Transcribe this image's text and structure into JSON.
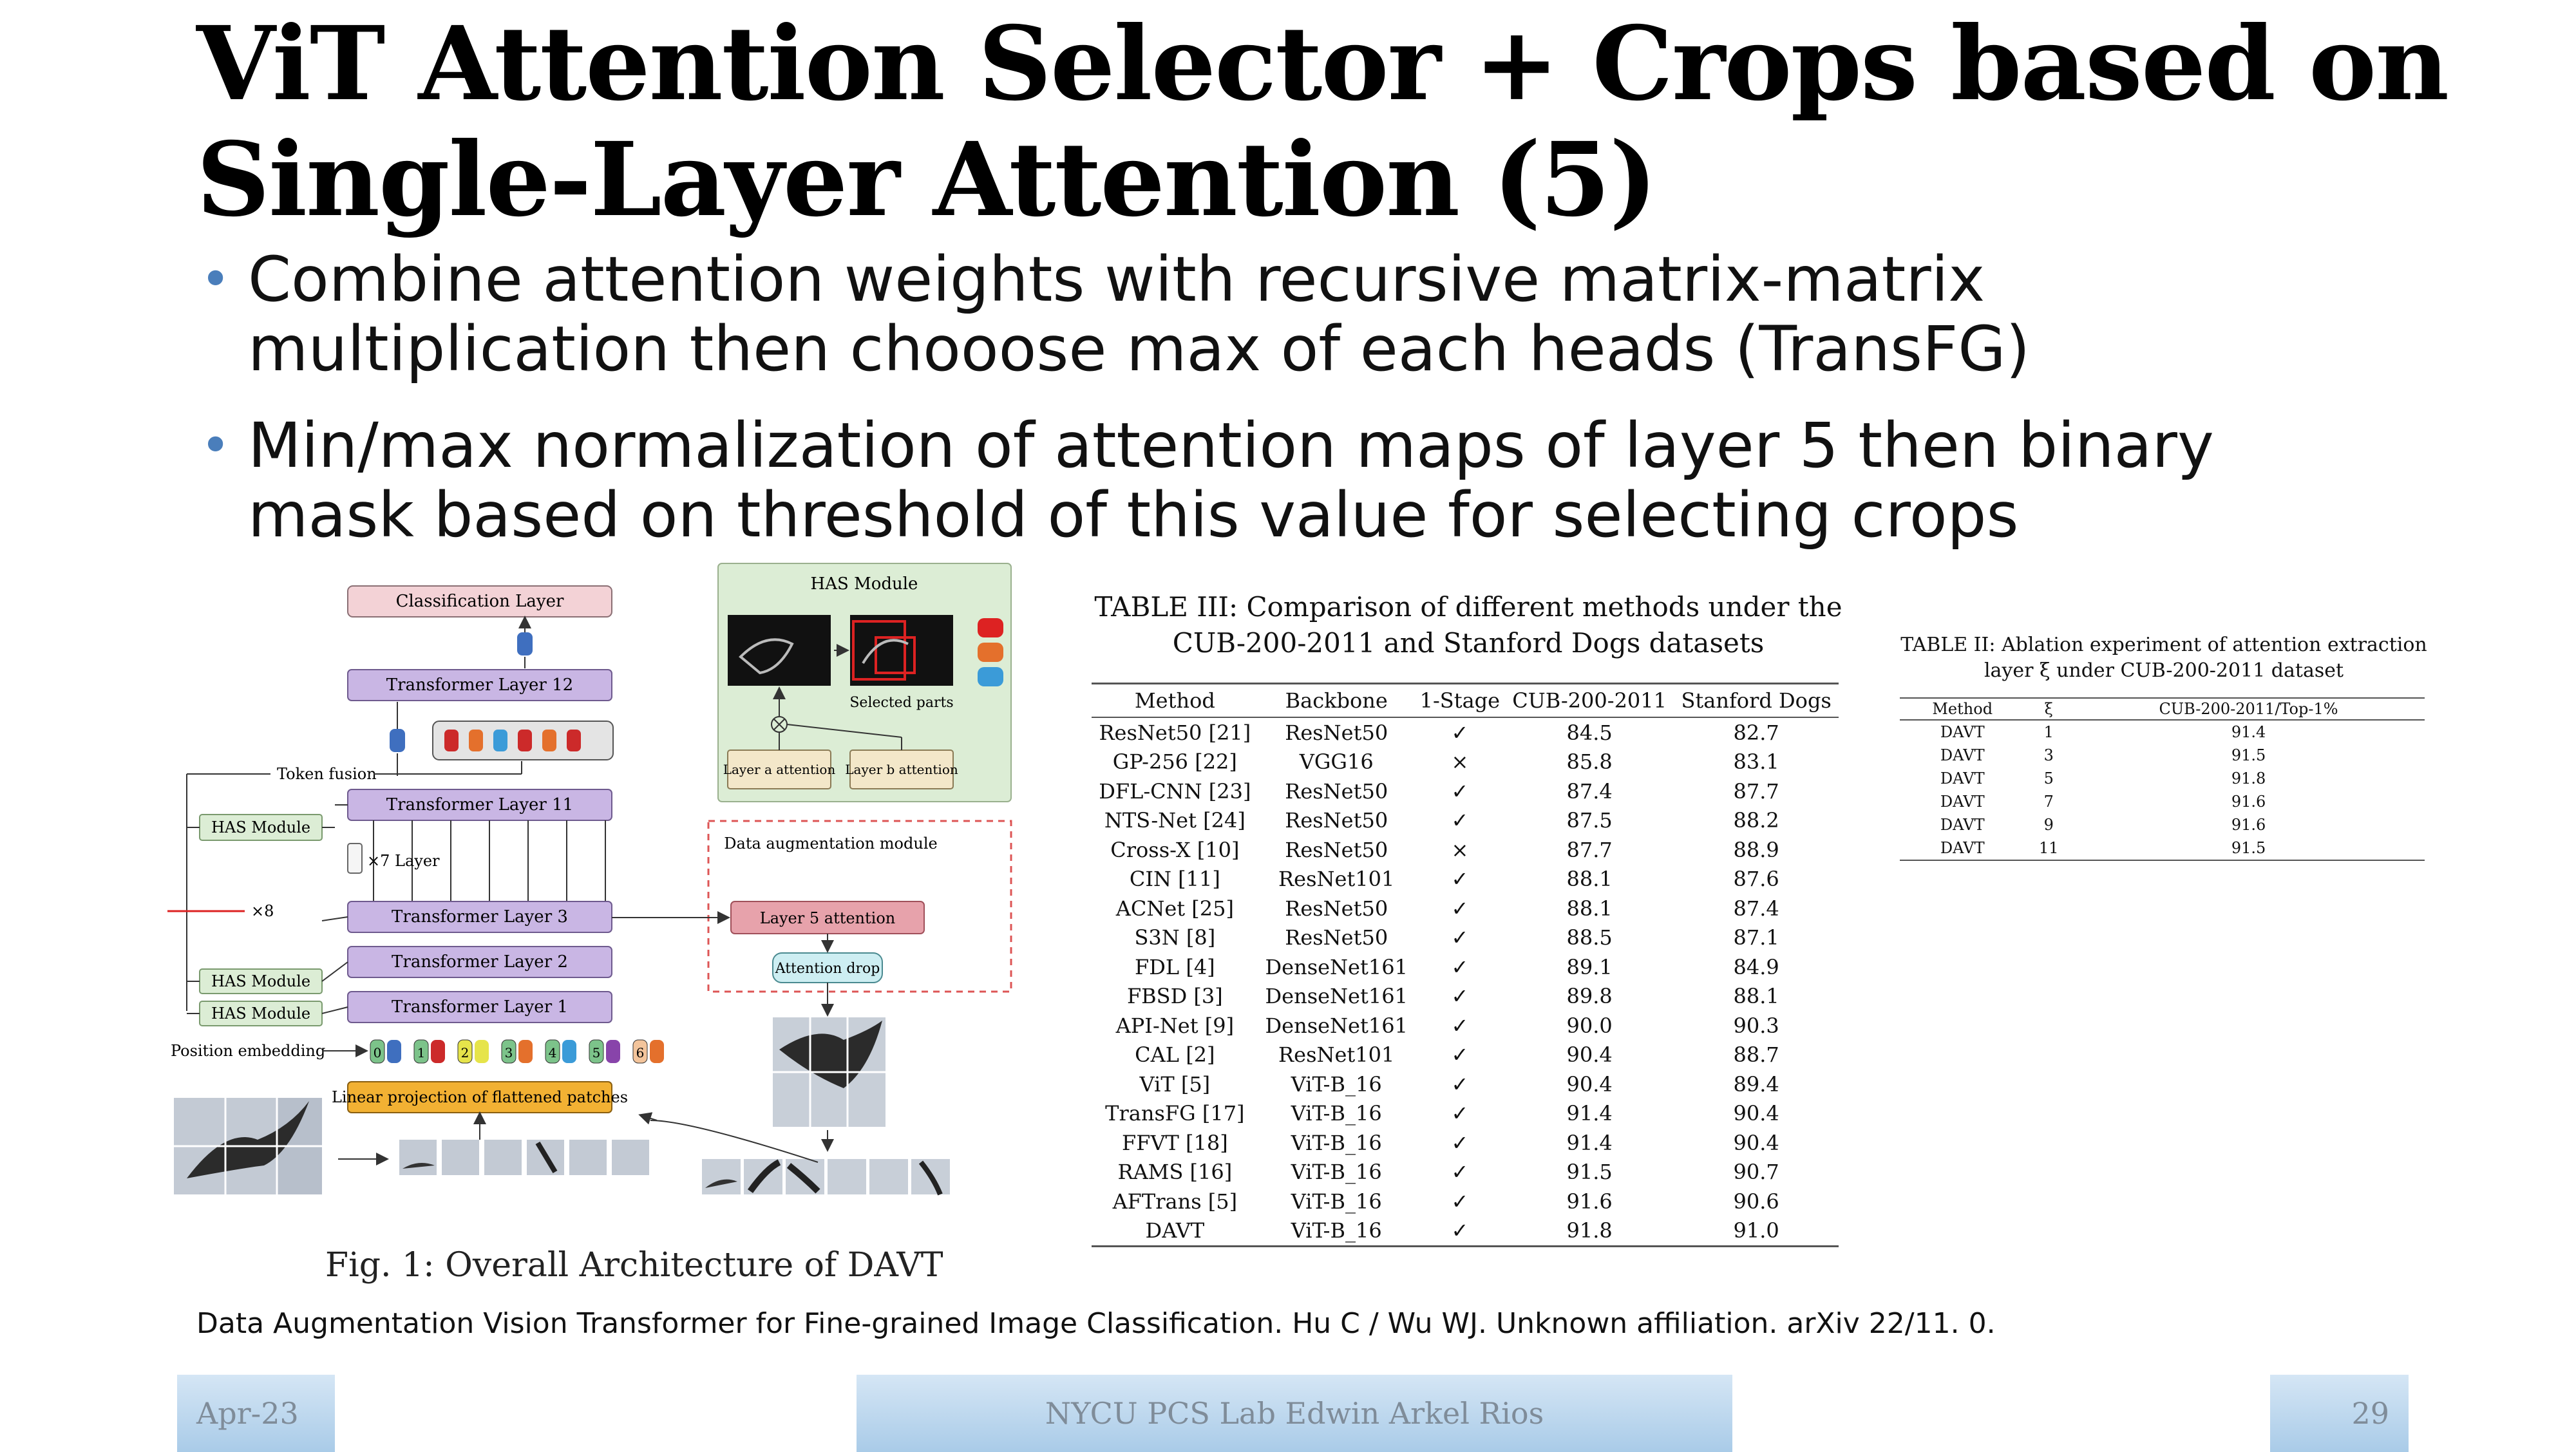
{
  "slide": {
    "title_line1": "ViT Attention Selector + Crops based on",
    "title_line2": "Single-Layer Attention (5)",
    "bullets": [
      "Combine attention weights with recursive matrix-matrix\nmultiplication then chooose max of each heads (TransFG)",
      "Min/max normalization of attention maps of layer 5 then binary\nmask based on threshold of this value for selecting crops"
    ],
    "citation": "Data Augmentation Vision Transformer for Fine-grained Image Classification. Hu C / Wu WJ. Unknown affiliation. arXiv 22/11. 0."
  },
  "figure": {
    "caption": "Fig. 1: Overall Architecture of DAVT",
    "classification_layer": "Classification Layer",
    "transformer_layer_12": "Transformer Layer 12",
    "transformer_layer_11": "Transformer Layer 11",
    "transformer_layer_3": "Transformer Layer 3",
    "transformer_layer_2": "Transformer Layer 2",
    "transformer_layer_1": "Transformer Layer 1",
    "token_fusion": "Token fusion",
    "has_module": "HAS Module",
    "x7_layer": "×7 Layer",
    "x8": "×8",
    "position_embedding": "Position embedding",
    "linear_projection": "Linear projection of flattened patches",
    "has_module_title": "HAS Module",
    "selected_parts": "Selected parts",
    "layer_a_attention": "Layer a attention",
    "layer_b_attention": "Layer b attention",
    "data_augmentation_module": "Data augmentation module",
    "layer5_attention": "Layer 5 attention",
    "attention_drop": "Attention drop",
    "tokens": [
      "0",
      "1",
      "2",
      "3",
      "4",
      "5",
      "6"
    ],
    "colors": {
      "classification": "#f3d2d6",
      "transformer": "#c9b6e4",
      "has_panel": "#dcedd5",
      "linear": "#f2b133",
      "layer5": "#e7a2ab",
      "attention_drop": "#cdeef2"
    }
  },
  "table3": {
    "caption": "TABLE III: Comparison of different methods under the CUB-200-2011 and Stanford Dogs datasets",
    "headers": [
      "Method",
      "Backbone",
      "1-Stage",
      "CUB-200-2011",
      "Stanford Dogs"
    ],
    "rows": [
      [
        "ResNet50 [21]",
        "ResNet50",
        "✓",
        "84.5",
        "82.7"
      ],
      [
        "GP-256 [22]",
        "VGG16",
        "×",
        "85.8",
        "83.1"
      ],
      [
        "DFL-CNN [23]",
        "ResNet50",
        "✓",
        "87.4",
        "87.7"
      ],
      [
        "NTS-Net [24]",
        "ResNet50",
        "✓",
        "87.5",
        "88.2"
      ],
      [
        "Cross-X [10]",
        "ResNet50",
        "×",
        "87.7",
        "88.9"
      ],
      [
        "CIN [11]",
        "ResNet101",
        "✓",
        "88.1",
        "87.6"
      ],
      [
        "ACNet [25]",
        "ResNet50",
        "✓",
        "88.1",
        "87.4"
      ],
      [
        "S3N [8]",
        "ResNet50",
        "✓",
        "88.5",
        "87.1"
      ],
      [
        "FDL [4]",
        "DenseNet161",
        "✓",
        "89.1",
        "84.9"
      ],
      [
        "FBSD [3]",
        "DenseNet161",
        "✓",
        "89.8",
        "88.1"
      ],
      [
        "API-Net [9]",
        "DenseNet161",
        "✓",
        "90.0",
        "90.3"
      ],
      [
        "CAL [2]",
        "ResNet101",
        "✓",
        "90.4",
        "88.7"
      ],
      [
        "ViT [5]",
        "ViT-B_16",
        "✓",
        "90.4",
        "89.4"
      ],
      [
        "TransFG [17]",
        "ViT-B_16",
        "✓",
        "91.4",
        "90.4"
      ],
      [
        "FFVT [18]",
        "ViT-B_16",
        "✓",
        "91.4",
        "90.4"
      ],
      [
        "RAMS [16]",
        "ViT-B_16",
        "✓",
        "91.5",
        "90.7"
      ],
      [
        "AFTrans [5]",
        "ViT-B_16",
        "✓",
        "91.6",
        "90.6"
      ],
      [
        "DAVT",
        "ViT-B_16",
        "✓",
        "91.8",
        "91.0"
      ]
    ]
  },
  "table2": {
    "caption": "TABLE II: Ablation experiment of attention extraction layer ξ under CUB-200-2011 dataset",
    "headers": [
      "Method",
      "ξ",
      "CUB-200-2011/Top-1%"
    ],
    "rows": [
      [
        "DAVT",
        "1",
        "91.4"
      ],
      [
        "DAVT",
        "3",
        "91.5"
      ],
      [
        "DAVT",
        "5",
        "91.8"
      ],
      [
        "DAVT",
        "7",
        "91.6"
      ],
      [
        "DAVT",
        "9",
        "91.6"
      ],
      [
        "DAVT",
        "11",
        "91.5"
      ]
    ]
  },
  "footer": {
    "date": "Apr-23",
    "lab": "NYCU PCS Lab Edwin Arkel Rios",
    "page": "29"
  }
}
